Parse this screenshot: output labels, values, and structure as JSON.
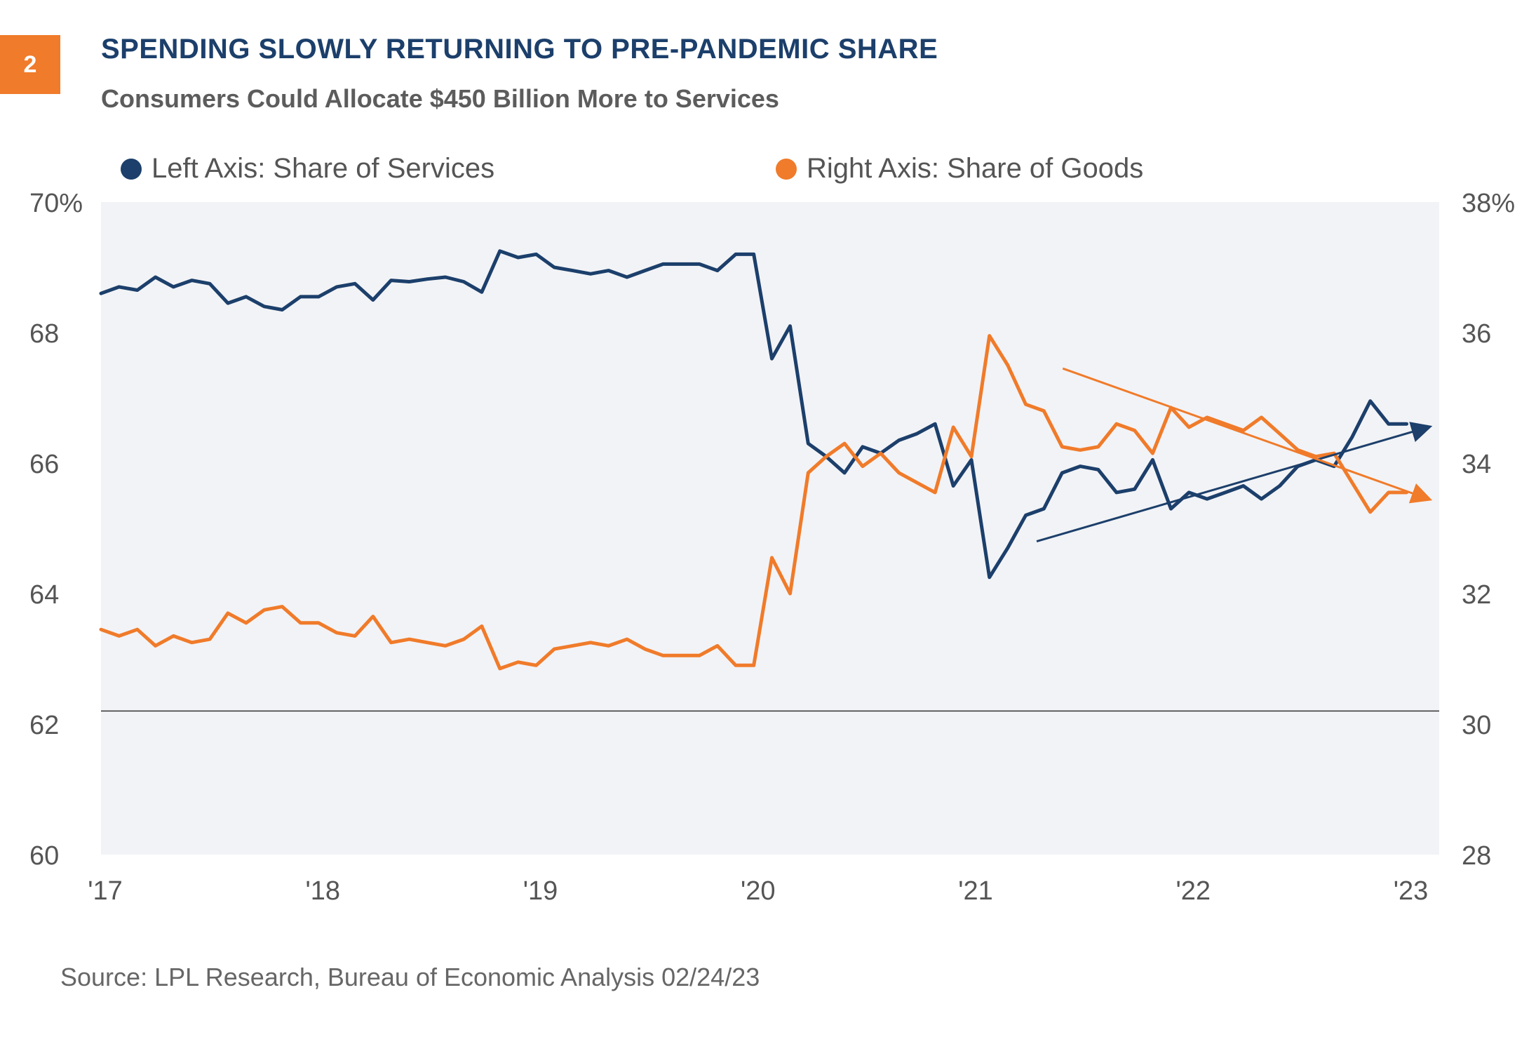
{
  "badge": "2",
  "title": "SPENDING SLOWLY RETURNING TO PRE-PANDEMIC SHARE",
  "subtitle": "Consumers Could Allocate $450 Billion More to Services",
  "source": "Source: LPL Research, Bureau of Economic Analysis 02/24/23",
  "colors": {
    "services": "#1c3f6b",
    "goods": "#f07b2a",
    "plot_bg": "#f2f3f6",
    "axis_text": "#555555"
  },
  "chart_data": {
    "type": "line",
    "legend": [
      "Left Axis: Share of Services",
      "Right Axis: Share of Goods"
    ],
    "legend_position": "top",
    "x_tick_labels": [
      "'17",
      "'18",
      "'19",
      "'20",
      "'21",
      "'22",
      "'23"
    ],
    "x_tick_years": [
      2017,
      2018,
      2019,
      2020,
      2021,
      2022,
      2023
    ],
    "xlim": [
      2017.0,
      2023.15
    ],
    "left_axis": {
      "ylim": [
        60,
        70
      ],
      "ticks": [
        60,
        62,
        64,
        66,
        68,
        70
      ],
      "tick_labels": [
        "60",
        "62",
        "64",
        "66",
        "68",
        "70%"
      ]
    },
    "right_axis": {
      "ylim": [
        28,
        38
      ],
      "ticks": [
        28,
        30,
        32,
        34,
        36,
        38
      ],
      "tick_labels": [
        "28",
        "30",
        "32",
        "34",
        "36",
        "38%"
      ]
    },
    "reference_line": {
      "axis": "left",
      "value": 62.2
    },
    "series": [
      {
        "name": "Left Axis: Share of Services",
        "axis": "left",
        "x": [
          2017.0,
          2017.083,
          2017.167,
          2017.25,
          2017.333,
          2017.417,
          2017.5,
          2017.583,
          2017.667,
          2017.75,
          2017.833,
          2017.917,
          2018.0,
          2018.083,
          2018.167,
          2018.25,
          2018.333,
          2018.417,
          2018.5,
          2018.583,
          2018.667,
          2018.75,
          2018.833,
          2018.917,
          2019.0,
          2019.083,
          2019.167,
          2019.25,
          2019.333,
          2019.417,
          2019.5,
          2019.583,
          2019.667,
          2019.75,
          2019.833,
          2019.917,
          2020.0,
          2020.083,
          2020.167,
          2020.25,
          2020.333,
          2020.417,
          2020.5,
          2020.583,
          2020.667,
          2020.75,
          2020.833,
          2020.917,
          2021.0,
          2021.083,
          2021.167,
          2021.25,
          2021.333,
          2021.417,
          2021.5,
          2021.583,
          2021.667,
          2021.75,
          2021.833,
          2021.917,
          2022.0,
          2022.083,
          2022.167,
          2022.25,
          2022.333,
          2022.417,
          2022.5,
          2022.583,
          2022.667,
          2022.75,
          2022.833,
          2022.917,
          2023.0
        ],
        "values": [
          68.6,
          68.7,
          68.65,
          68.85,
          68.7,
          68.8,
          68.75,
          68.45,
          68.55,
          68.4,
          68.35,
          68.55,
          68.55,
          68.7,
          68.75,
          68.5,
          68.8,
          68.78,
          68.82,
          68.85,
          68.78,
          68.62,
          69.25,
          69.15,
          69.2,
          69.0,
          68.95,
          68.9,
          68.95,
          68.85,
          68.95,
          69.05,
          69.05,
          69.05,
          68.95,
          69.2,
          69.2,
          67.6,
          68.1,
          66.3,
          66.1,
          65.85,
          66.25,
          66.15,
          66.35,
          66.45,
          66.6,
          65.65,
          66.05,
          64.25,
          64.7,
          65.2,
          65.3,
          65.85,
          65.95,
          65.9,
          65.55,
          65.6,
          66.05,
          65.3,
          65.55,
          65.45,
          65.55,
          65.65,
          65.45,
          65.65,
          65.95,
          66.05,
          65.95,
          66.4,
          66.95,
          66.6,
          66.6
        ]
      },
      {
        "name": "Right Axis: Share of Goods",
        "axis": "right",
        "x": [
          2017.0,
          2017.083,
          2017.167,
          2017.25,
          2017.333,
          2017.417,
          2017.5,
          2017.583,
          2017.667,
          2017.75,
          2017.833,
          2017.917,
          2018.0,
          2018.083,
          2018.167,
          2018.25,
          2018.333,
          2018.417,
          2018.5,
          2018.583,
          2018.667,
          2018.75,
          2018.833,
          2018.917,
          2019.0,
          2019.083,
          2019.167,
          2019.25,
          2019.333,
          2019.417,
          2019.5,
          2019.583,
          2019.667,
          2019.75,
          2019.833,
          2019.917,
          2020.0,
          2020.083,
          2020.167,
          2020.25,
          2020.333,
          2020.417,
          2020.5,
          2020.583,
          2020.667,
          2020.75,
          2020.833,
          2020.917,
          2021.0,
          2021.083,
          2021.167,
          2021.25,
          2021.333,
          2021.417,
          2021.5,
          2021.583,
          2021.667,
          2021.75,
          2021.833,
          2021.917,
          2022.0,
          2022.083,
          2022.167,
          2022.25,
          2022.333,
          2022.417,
          2022.5,
          2022.583,
          2022.667,
          2022.75,
          2022.833,
          2022.917,
          2023.0
        ],
        "values": [
          31.45,
          31.35,
          31.45,
          31.2,
          31.35,
          31.25,
          31.3,
          31.7,
          31.55,
          31.75,
          31.8,
          31.55,
          31.55,
          31.4,
          31.35,
          31.65,
          31.25,
          31.3,
          31.25,
          31.2,
          31.3,
          31.5,
          30.85,
          30.95,
          30.9,
          31.15,
          31.2,
          31.25,
          31.2,
          31.3,
          31.15,
          31.05,
          31.05,
          31.05,
          31.2,
          30.9,
          30.9,
          32.55,
          32.0,
          33.85,
          34.1,
          34.3,
          33.95,
          34.15,
          33.85,
          33.7,
          33.55,
          34.55,
          34.1,
          35.95,
          35.5,
          34.9,
          34.8,
          34.25,
          34.2,
          34.25,
          34.6,
          34.5,
          34.15,
          34.85,
          34.55,
          34.7,
          34.6,
          34.5,
          34.7,
          34.45,
          34.2,
          34.1,
          34.15,
          33.7,
          33.25,
          33.55,
          33.55
        ]
      }
    ],
    "trend_arrows": [
      {
        "series": "Left Axis: Share of Services",
        "axis": "left",
        "from": [
          2021.3,
          64.8
        ],
        "to": [
          2023.1,
          66.55
        ]
      },
      {
        "series": "Right Axis: Share of Goods",
        "axis": "right",
        "from": [
          2021.42,
          35.45
        ],
        "to": [
          2023.1,
          33.45
        ]
      }
    ]
  }
}
